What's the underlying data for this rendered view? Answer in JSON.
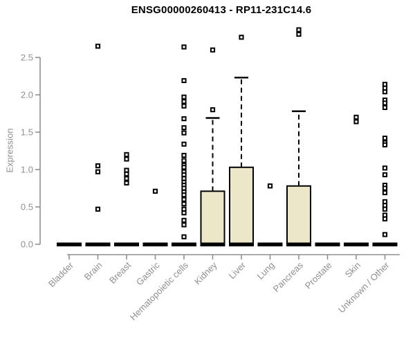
{
  "page": {
    "background": "#ffffff"
  },
  "chart_data": {
    "type": "boxplot",
    "title": "ENSG00000260413 - RP11-231C14.6",
    "ylabel": "Expression",
    "xlabel": "",
    "ylim": [
      0,
      2.9
    ],
    "grid": false,
    "legend": "none",
    "yticks": [
      {
        "value": 0.0,
        "label": "0.0"
      },
      {
        "value": 0.5,
        "label": "0.5"
      },
      {
        "value": 1.0,
        "label": "1.0"
      },
      {
        "value": 1.5,
        "label": "1.5"
      },
      {
        "value": 2.0,
        "label": "2.0"
      },
      {
        "value": 2.5,
        "label": "2.5"
      }
    ],
    "categories": [
      "Bladder",
      "Brain",
      "Breast",
      "Gastric",
      "Hematopoietic cells",
      "Kidney",
      "Liver",
      "Lung",
      "Pancreas",
      "Prostate",
      "Skin",
      "Unknown / Other"
    ],
    "colors": {
      "box_fill": "#ede7c9",
      "box_stroke": "#000000",
      "median": "#000000",
      "axis": "#8f8f8f",
      "tick_label": "#8f8f8f",
      "title": "#000000",
      "outlier": "#000000"
    },
    "boxes": [
      {
        "category": "Bladder",
        "q1": 0,
        "median": 0,
        "q3": 0,
        "whisker_low": 0,
        "whisker_high": 0,
        "outliers": []
      },
      {
        "category": "Brain",
        "q1": 0,
        "median": 0,
        "q3": 0,
        "whisker_low": 0,
        "whisker_high": 0,
        "outliers": [
          2.65,
          1.05,
          0.97,
          0.47
        ]
      },
      {
        "category": "Breast",
        "q1": 0,
        "median": 0,
        "q3": 0,
        "whisker_low": 0,
        "whisker_high": 0,
        "outliers": [
          1.2,
          1.14,
          0.99,
          0.94,
          0.88,
          0.82
        ]
      },
      {
        "category": "Gastric",
        "q1": 0,
        "median": 0,
        "q3": 0,
        "whisker_low": 0,
        "whisker_high": 0,
        "outliers": [
          0.71
        ]
      },
      {
        "category": "Hematopoietic cells",
        "q1": 0,
        "median": 0,
        "q3": 0,
        "whisker_low": 0,
        "whisker_high": 0,
        "outliers": [
          2.64,
          2.19,
          1.97,
          1.91,
          1.85,
          1.68,
          1.56,
          1.49,
          1.34,
          1.19,
          1.12,
          1.06,
          1.03,
          0.97,
          0.93,
          0.88,
          0.83,
          0.79,
          0.75,
          0.7,
          0.66,
          0.6,
          0.54,
          0.47,
          0.42,
          0.32,
          0.26,
          0.1
        ]
      },
      {
        "category": "Kidney",
        "q1": 0,
        "median": 0,
        "q3": 0.71,
        "whisker_low": 0,
        "whisker_high": 1.69,
        "outliers": [
          2.6,
          1.8
        ]
      },
      {
        "category": "Liver",
        "q1": 0,
        "median": 0,
        "q3": 1.03,
        "whisker_low": 0,
        "whisker_high": 2.23,
        "outliers": [
          2.77
        ]
      },
      {
        "category": "Lung",
        "q1": 0,
        "median": 0,
        "q3": 0,
        "whisker_low": 0,
        "whisker_high": 0,
        "outliers": [
          0.78
        ]
      },
      {
        "category": "Pancreas",
        "q1": 0,
        "median": 0,
        "q3": 0.78,
        "whisker_low": 0,
        "whisker_high": 1.78,
        "outliers": [
          2.87,
          2.81
        ]
      },
      {
        "category": "Prostate",
        "q1": 0,
        "median": 0,
        "q3": 0,
        "whisker_low": 0,
        "whisker_high": 0,
        "outliers": []
      },
      {
        "category": "Skin",
        "q1": 0,
        "median": 0,
        "q3": 0,
        "whisker_low": 0,
        "whisker_high": 0,
        "outliers": [
          1.7,
          1.64
        ]
      },
      {
        "category": "Unknown / Other",
        "q1": 0,
        "median": 0,
        "q3": 0,
        "whisker_low": 0,
        "whisker_high": 0,
        "outliers": [
          2.14,
          2.09,
          2.04,
          1.93,
          1.89,
          1.83,
          1.42,
          1.36,
          1.33,
          1.02,
          0.93,
          0.79,
          0.75,
          0.69,
          0.57,
          0.52,
          0.47,
          0.39,
          0.34,
          0.13
        ]
      }
    ]
  }
}
